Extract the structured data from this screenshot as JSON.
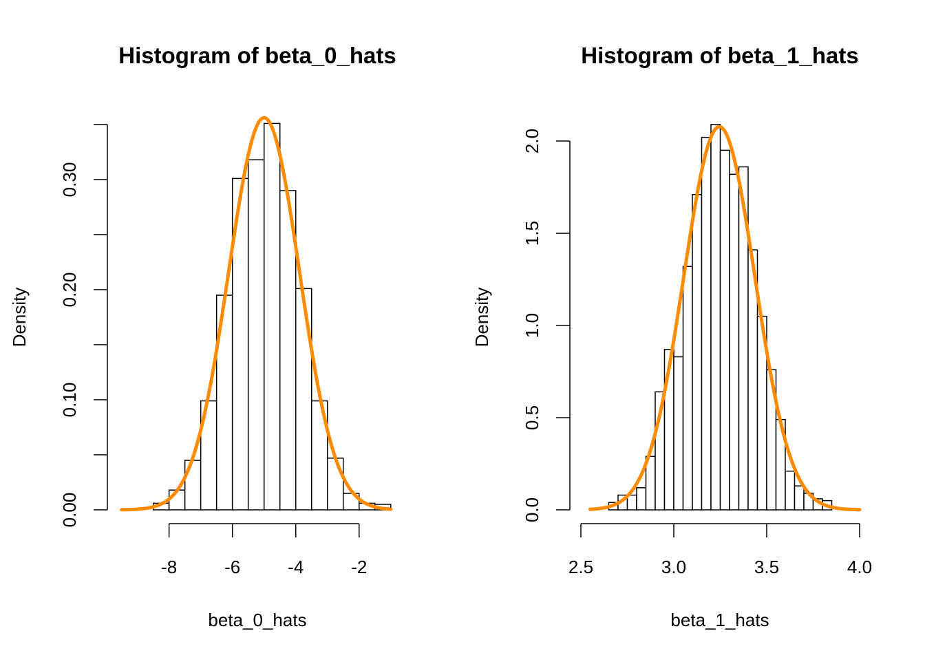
{
  "chart_data": [
    {
      "type": "bar",
      "title": "Histogram of beta_0_hats",
      "xlabel": "beta_0_hats",
      "ylabel": "Density",
      "xlim": [
        -9.6,
        -0.8
      ],
      "ylim": [
        0,
        0.35
      ],
      "x_ticks": [
        -8,
        -6,
        -4,
        -2
      ],
      "x_tick_labels": [
        "-8",
        "-6",
        "-4",
        "-2"
      ],
      "y_ticks": [
        0,
        0.05,
        0.1,
        0.15,
        0.2,
        0.25,
        0.3,
        0.35
      ],
      "y_tick_labels": [
        "0.00",
        "",
        "0.10",
        "",
        "0.20",
        "",
        "0.30",
        ""
      ],
      "bins": [
        {
          "x0": -8.5,
          "x1": -8.0,
          "density": 0.006
        },
        {
          "x0": -8.0,
          "x1": -7.5,
          "density": 0.018
        },
        {
          "x0": -7.5,
          "x1": -7.0,
          "density": 0.045
        },
        {
          "x0": -7.0,
          "x1": -6.5,
          "density": 0.099
        },
        {
          "x0": -6.5,
          "x1": -6.0,
          "density": 0.195
        },
        {
          "x0": -6.0,
          "x1": -5.5,
          "density": 0.301
        },
        {
          "x0": -5.5,
          "x1": -5.0,
          "density": 0.318
        },
        {
          "x0": -5.0,
          "x1": -4.5,
          "density": 0.351
        },
        {
          "x0": -4.5,
          "x1": -4.0,
          "density": 0.29
        },
        {
          "x0": -4.0,
          "x1": -3.5,
          "density": 0.201
        },
        {
          "x0": -3.5,
          "x1": -3.0,
          "density": 0.099
        },
        {
          "x0": -3.0,
          "x1": -2.5,
          "density": 0.047
        },
        {
          "x0": -2.5,
          "x1": -2.0,
          "density": 0.015
        },
        {
          "x0": -2.0,
          "x1": -1.5,
          "density": 0.006
        },
        {
          "x0": -1.5,
          "x1": -1.0,
          "density": 0.005
        }
      ],
      "curve": {
        "kind": "normal",
        "mean": -5,
        "sd": 1.12,
        "x_from": -9.5,
        "x_to": -1.0,
        "color": "#FF8C00"
      }
    },
    {
      "type": "bar",
      "title": "Histogram of beta_1_hats",
      "xlabel": "beta_1_hats",
      "ylabel": "Density",
      "xlim": [
        2.5,
        4.0
      ],
      "ylim": [
        0,
        2.0
      ],
      "x_ticks": [
        2.5,
        3.0,
        3.5,
        4.0
      ],
      "x_tick_labels": [
        "2.5",
        "3.0",
        "3.5",
        "4.0"
      ],
      "y_ticks": [
        0,
        0.5,
        1.0,
        1.5,
        2.0
      ],
      "y_tick_labels": [
        "0.0",
        "0.5",
        "1.0",
        "1.5",
        "2.0"
      ],
      "bins": [
        {
          "x0": 2.65,
          "x1": 2.7,
          "density": 0.04
        },
        {
          "x0": 2.7,
          "x1": 2.75,
          "density": 0.08
        },
        {
          "x0": 2.75,
          "x1": 2.8,
          "density": 0.08
        },
        {
          "x0": 2.8,
          "x1": 2.85,
          "density": 0.12
        },
        {
          "x0": 2.85,
          "x1": 2.9,
          "density": 0.29
        },
        {
          "x0": 2.9,
          "x1": 2.95,
          "density": 0.64
        },
        {
          "x0": 2.95,
          "x1": 3.0,
          "density": 0.87
        },
        {
          "x0": 3.0,
          "x1": 3.05,
          "density": 0.83
        },
        {
          "x0": 3.05,
          "x1": 3.1,
          "density": 1.32
        },
        {
          "x0": 3.1,
          "x1": 3.15,
          "density": 1.71
        },
        {
          "x0": 3.15,
          "x1": 3.2,
          "density": 2.02
        },
        {
          "x0": 3.2,
          "x1": 3.25,
          "density": 2.09
        },
        {
          "x0": 3.25,
          "x1": 3.3,
          "density": 1.95
        },
        {
          "x0": 3.3,
          "x1": 3.35,
          "density": 1.82
        },
        {
          "x0": 3.35,
          "x1": 3.4,
          "density": 1.86
        },
        {
          "x0": 3.4,
          "x1": 3.45,
          "density": 1.41
        },
        {
          "x0": 3.45,
          "x1": 3.5,
          "density": 1.05
        },
        {
          "x0": 3.5,
          "x1": 3.55,
          "density": 0.76
        },
        {
          "x0": 3.55,
          "x1": 3.6,
          "density": 0.49
        },
        {
          "x0": 3.6,
          "x1": 3.65,
          "density": 0.21
        },
        {
          "x0": 3.65,
          "x1": 3.7,
          "density": 0.13
        },
        {
          "x0": 3.7,
          "x1": 3.75,
          "density": 0.09
        },
        {
          "x0": 3.75,
          "x1": 3.8,
          "density": 0.06
        },
        {
          "x0": 3.8,
          "x1": 3.85,
          "density": 0.05
        }
      ],
      "curve": {
        "kind": "normal",
        "mean": 3.245,
        "sd": 0.192,
        "x_from": 2.55,
        "x_to": 4.0,
        "color": "#FF8C00"
      }
    }
  ]
}
